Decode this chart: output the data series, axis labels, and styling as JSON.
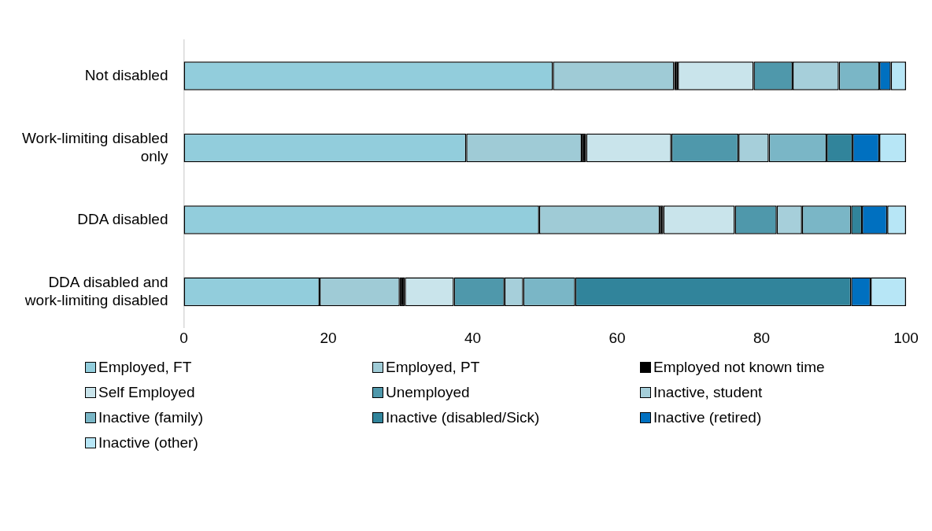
{
  "chart_data": {
    "type": "bar",
    "orientation": "horizontal",
    "stacked": true,
    "grid": false,
    "legend": "bottom",
    "categories": [
      "Not disabled",
      "Work-limiting disabled only",
      "DDA disabled",
      "DDA disabled and work-limiting disabled"
    ],
    "xlim": [
      0,
      100
    ],
    "xticks": [
      0,
      20,
      40,
      60,
      80,
      100
    ],
    "series": [
      {
        "name": "Employed, FT",
        "color": "#92cddc",
        "values": [
          51.1,
          39.1,
          49.2,
          18.8
        ]
      },
      {
        "name": "Employed, PT",
        "color": "#9fcbd6",
        "values": [
          16.8,
          16.0,
          16.7,
          11.1
        ]
      },
      {
        "name": "Employed not known time",
        "color": "#000000",
        "values": [
          0.5,
          0.6,
          0.5,
          0.7
        ]
      },
      {
        "name": "Self Employed",
        "color": "#c9e4eb",
        "values": [
          10.5,
          11.8,
          9.9,
          6.8
        ]
      },
      {
        "name": "Unemployed",
        "color": "#4f98ab",
        "values": [
          5.4,
          9.3,
          5.8,
          7.0
        ]
      },
      {
        "name": "Inactive, student",
        "color": "#a6cfda",
        "values": [
          6.4,
          4.2,
          3.5,
          2.6
        ]
      },
      {
        "name": "Inactive (family)",
        "color": "#7ab6c6",
        "values": [
          5.6,
          8.0,
          6.8,
          7.2
        ]
      },
      {
        "name": "Inactive (disabled/Sick)",
        "color": "#31849b",
        "values": [
          0,
          3.6,
          1.5,
          38.2
        ]
      },
      {
        "name": "Inactive (retired)",
        "color": "#0070c0",
        "values": [
          1.6,
          3.7,
          3.5,
          2.7
        ]
      },
      {
        "name": "Inactive (other)",
        "color": "#b7e6f6",
        "values": [
          2.1,
          3.7,
          2.6,
          4.9
        ]
      }
    ]
  }
}
